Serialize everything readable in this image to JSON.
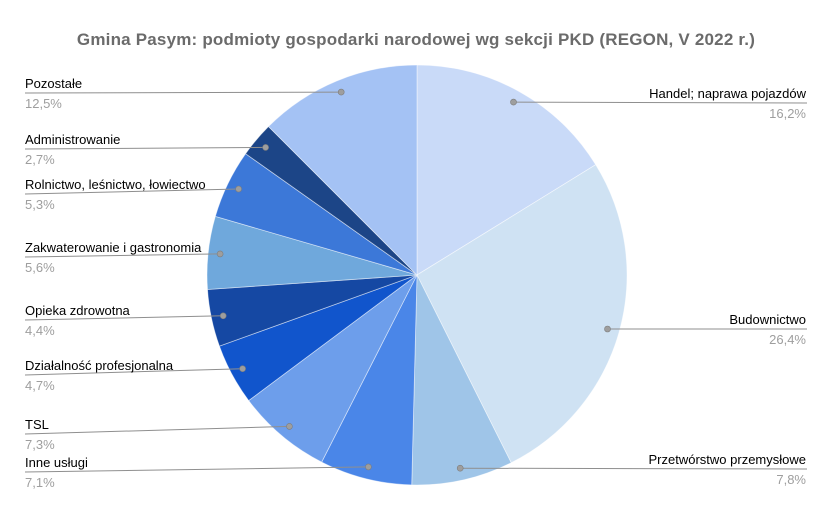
{
  "chart_data": {
    "type": "pie",
    "title": "Gmina Pasym: podmioty gospodarki narodowej wg sekcji PKD (REGON, V 2022 r.)",
    "direction": "clockwise",
    "start_angle_deg": 0,
    "legend_position": "labeled-callouts",
    "background": "#ffffff",
    "slices": [
      {
        "label": "Handel; naprawa pojazdów",
        "value": 16.2,
        "pct_label": "16,2%",
        "color": "#c9daf8",
        "callout_side": "right"
      },
      {
        "label": "Budownictwo",
        "value": 26.4,
        "pct_label": "26,4%",
        "color": "#cfe2f3",
        "callout_side": "right"
      },
      {
        "label": "Przetwórstwo przemysłowe",
        "value": 7.8,
        "pct_label": "7,8%",
        "color": "#9fc5e8",
        "callout_side": "right"
      },
      {
        "label": "Inne usługi",
        "value": 7.1,
        "pct_label": "7,1%",
        "color": "#4a86e8",
        "callout_side": "left"
      },
      {
        "label": "TSL",
        "value": 7.3,
        "pct_label": "7,3%",
        "color": "#6d9eeb",
        "callout_side": "left"
      },
      {
        "label": "Działalność profesjonalna",
        "value": 4.7,
        "pct_label": "4,7%",
        "color": "#1155cc",
        "callout_side": "left"
      },
      {
        "label": "Opieka zdrowotna",
        "value": 4.4,
        "pct_label": "4,4%",
        "color": "#1548a3",
        "callout_side": "left"
      },
      {
        "label": "Zakwaterowanie i gastronomia",
        "value": 5.6,
        "pct_label": "5,6%",
        "color": "#6fa8dc",
        "callout_side": "left"
      },
      {
        "label": "Rolnictwo, leśnictwo, łowiectwo",
        "value": 5.3,
        "pct_label": "5,3%",
        "color": "#3c78d8",
        "callout_side": "left"
      },
      {
        "label": "Administrowanie",
        "value": 2.7,
        "pct_label": "2,7%",
        "color": "#1c4587",
        "callout_side": "left"
      },
      {
        "label": "Pozostałe",
        "value": 12.5,
        "pct_label": "12,5%",
        "color": "#a4c2f4",
        "callout_side": "left"
      }
    ],
    "styles": {
      "title_color": "#6b6b6b",
      "label_color": "#000000",
      "percent_color": "#9e9e9e",
      "leader_line_color": "#8f8f8f",
      "leader_dot_color": "#9e9e9e"
    }
  }
}
